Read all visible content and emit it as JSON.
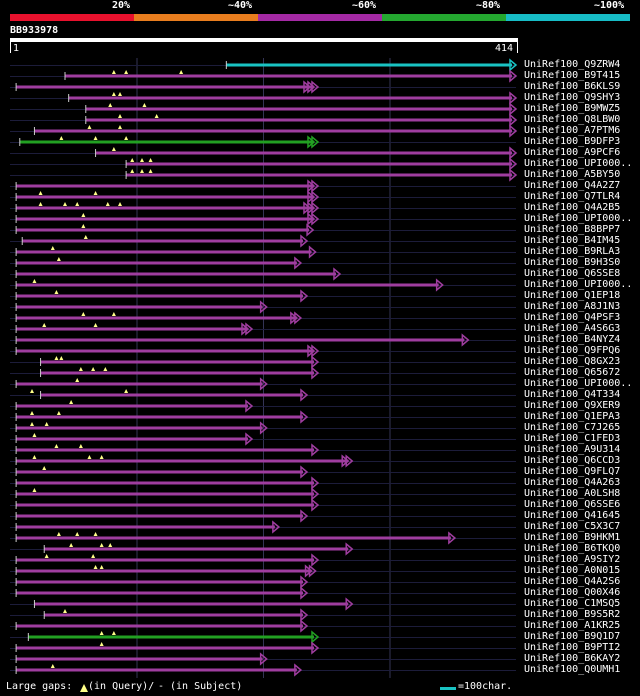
{
  "header": {
    "scale_labels": [
      "20%",
      "~40%",
      "~60%",
      "~80%",
      "~100%"
    ],
    "scale_colors": [
      "#e8112d",
      "#e87d1e",
      "#a52aa5",
      "#24a830",
      "#17bcc6"
    ],
    "query_id": "BB933978",
    "start_pos": "1",
    "end_pos": "414"
  },
  "colors": {
    "line": "#9f3d9f",
    "line_green": "#22a022",
    "line_cyan": "#19c3c3",
    "gap_marker": "#ffff88",
    "background": "#000000",
    "grid": "#333355"
  },
  "query_length": 414,
  "hits": [
    {
      "label": "UniRef100_Q9ZRW4",
      "start": 177,
      "end": 414,
      "color": "cyan",
      "arrows": 1,
      "gaps": []
    },
    {
      "label": "UniRef100_B9T415",
      "start": 45,
      "end": 414,
      "color": "purple",
      "arrows": 1,
      "gaps": [
        85,
        95,
        140
      ]
    },
    {
      "label": "UniRef100_B6KLS9",
      "start": 5,
      "end": 252,
      "color": "purple",
      "arrows": 3,
      "gaps": []
    },
    {
      "label": "UniRef100_Q9SHY3",
      "start": 48,
      "end": 414,
      "color": "purple",
      "arrows": 1,
      "gaps": [
        85,
        90
      ]
    },
    {
      "label": "UniRef100_B9MWZ5",
      "start": 62,
      "end": 414,
      "color": "purple",
      "arrows": 1,
      "gaps": [
        82,
        110
      ]
    },
    {
      "label": "UniRef100_Q8LBW0",
      "start": 62,
      "end": 414,
      "color": "purple",
      "arrows": 1,
      "gaps": [
        90,
        120
      ]
    },
    {
      "label": "UniRef100_A7PTM6",
      "start": 20,
      "end": 414,
      "color": "purple",
      "arrows": 1,
      "gaps": [
        65,
        90
      ]
    },
    {
      "label": "UniRef100_B9DFP3",
      "start": 8,
      "end": 252,
      "color": "green",
      "arrows": 2,
      "gaps": [
        42,
        70,
        95
      ]
    },
    {
      "label": "UniRef100_A9PCF6",
      "start": 70,
      "end": 414,
      "color": "purple",
      "arrows": 1,
      "gaps": [
        85
      ]
    },
    {
      "label": "UniRef100_UPI000..",
      "start": 95,
      "end": 414,
      "color": "purple",
      "arrows": 1,
      "gaps": [
        100,
        108,
        115
      ]
    },
    {
      "label": "UniRef100_A5BY50",
      "start": 95,
      "end": 414,
      "color": "purple",
      "arrows": 1,
      "gaps": [
        100,
        108,
        115
      ]
    },
    {
      "label": "UniRef100_Q4A2Z7",
      "start": 5,
      "end": 252,
      "color": "purple",
      "arrows": 2,
      "gaps": []
    },
    {
      "label": "UniRef100_Q7TLR4",
      "start": 5,
      "end": 252,
      "color": "purple",
      "arrows": 2,
      "gaps": [
        25,
        70
      ]
    },
    {
      "label": "UniRef100_Q4A2B5",
      "start": 5,
      "end": 252,
      "color": "purple",
      "arrows": 3,
      "gaps": [
        25,
        45,
        55,
        80,
        90
      ]
    },
    {
      "label": "UniRef100_UPI000..",
      "start": 5,
      "end": 252,
      "color": "purple",
      "arrows": 2,
      "gaps": [
        60
      ]
    },
    {
      "label": "UniRef100_B8BPP7",
      "start": 5,
      "end": 248,
      "color": "purple",
      "arrows": 1,
      "gaps": [
        60
      ]
    },
    {
      "label": "UniRef100_B4IM45",
      "start": 10,
      "end": 243,
      "color": "purple",
      "arrows": 1,
      "gaps": [
        62
      ]
    },
    {
      "label": "UniRef100_B9RLA3",
      "start": 5,
      "end": 250,
      "color": "purple",
      "arrows": 1,
      "gaps": [
        35
      ]
    },
    {
      "label": "UniRef100_B9H3S0",
      "start": 5,
      "end": 238,
      "color": "purple",
      "arrows": 1,
      "gaps": [
        40
      ]
    },
    {
      "label": "UniRef100_Q6SSE8",
      "start": 5,
      "end": 270,
      "color": "purple",
      "arrows": 1,
      "gaps": []
    },
    {
      "label": "UniRef100_UPI000..",
      "start": 5,
      "end": 354,
      "color": "purple",
      "arrows": 1,
      "gaps": [
        20
      ]
    },
    {
      "label": "UniRef100_Q1EP18",
      "start": 5,
      "end": 243,
      "color": "purple",
      "arrows": 1,
      "gaps": [
        38
      ]
    },
    {
      "label": "UniRef100_A8J1N3",
      "start": 5,
      "end": 210,
      "color": "purple",
      "arrows": 1,
      "gaps": []
    },
    {
      "label": "UniRef100_Q4PSF3",
      "start": 5,
      "end": 238,
      "color": "purple",
      "arrows": 2,
      "gaps": [
        60,
        85
      ]
    },
    {
      "label": "UniRef100_A4S6G3",
      "start": 5,
      "end": 198,
      "color": "purple",
      "arrows": 2,
      "gaps": [
        28,
        70
      ]
    },
    {
      "label": "UniRef100_B4NYZ4",
      "start": 5,
      "end": 375,
      "color": "purple",
      "arrows": 1,
      "gaps": []
    },
    {
      "label": "UniRef100_Q9FPQ6",
      "start": 5,
      "end": 252,
      "color": "purple",
      "arrows": 2,
      "gaps": []
    },
    {
      "label": "UniRef100_Q8GX23",
      "start": 25,
      "end": 252,
      "color": "purple",
      "arrows": 1,
      "gaps": [
        38,
        42
      ]
    },
    {
      "label": "UniRef100_Q65672",
      "start": 25,
      "end": 252,
      "color": "purple",
      "arrows": 1,
      "gaps": [
        58,
        68,
        78
      ]
    },
    {
      "label": "UniRef100_UPI000..",
      "start": 5,
      "end": 210,
      "color": "purple",
      "arrows": 1,
      "gaps": [
        55
      ]
    },
    {
      "label": "UniRef100_Q4T334",
      "start": 25,
      "end": 243,
      "color": "purple",
      "arrows": 1,
      "gaps": [
        18,
        95
      ]
    },
    {
      "label": "UniRef100_Q9XER9",
      "start": 5,
      "end": 198,
      "color": "purple",
      "arrows": 1,
      "gaps": [
        50
      ]
    },
    {
      "label": "UniRef100_Q1EPA3",
      "start": 5,
      "end": 243,
      "color": "purple",
      "arrows": 1,
      "gaps": [
        18,
        40
      ]
    },
    {
      "label": "UniRef100_C7J265",
      "start": 5,
      "end": 210,
      "color": "purple",
      "arrows": 1,
      "gaps": [
        18,
        30
      ]
    },
    {
      "label": "UniRef100_C1FED3",
      "start": 5,
      "end": 198,
      "color": "purple",
      "arrows": 1,
      "gaps": [
        20
      ]
    },
    {
      "label": "UniRef100_A9U314",
      "start": 5,
      "end": 252,
      "color": "purple",
      "arrows": 1,
      "gaps": [
        38,
        58
      ]
    },
    {
      "label": "UniRef100_Q6CCD3",
      "start": 5,
      "end": 280,
      "color": "purple",
      "arrows": 2,
      "gaps": [
        20,
        65,
        75
      ]
    },
    {
      "label": "UniRef100_Q9FLQ7",
      "start": 5,
      "end": 243,
      "color": "purple",
      "arrows": 1,
      "gaps": [
        28
      ]
    },
    {
      "label": "UniRef100_Q4A263",
      "start": 5,
      "end": 252,
      "color": "purple",
      "arrows": 1,
      "gaps": []
    },
    {
      "label": "UniRef100_A0LSH8",
      "start": 5,
      "end": 252,
      "color": "purple",
      "arrows": 1,
      "gaps": [
        20
      ]
    },
    {
      "label": "UniRef100_Q6SSE6",
      "start": 5,
      "end": 252,
      "color": "purple",
      "arrows": 1,
      "gaps": []
    },
    {
      "label": "UniRef100_Q41645",
      "start": 5,
      "end": 243,
      "color": "purple",
      "arrows": 1,
      "gaps": []
    },
    {
      "label": "UniRef100_C5X3C7",
      "start": 5,
      "end": 220,
      "color": "purple",
      "arrows": 1,
      "gaps": []
    },
    {
      "label": "UniRef100_B9HKM1",
      "start": 5,
      "end": 364,
      "color": "purple",
      "arrows": 1,
      "gaps": [
        40,
        55,
        70
      ]
    },
    {
      "label": "UniRef100_B6TKQ0",
      "start": 28,
      "end": 280,
      "color": "purple",
      "arrows": 1,
      "gaps": [
        50,
        75,
        82
      ]
    },
    {
      "label": "UniRef100_A9SIY2",
      "start": 5,
      "end": 252,
      "color": "purple",
      "arrows": 1,
      "gaps": [
        30,
        68
      ]
    },
    {
      "label": "UniRef100_A0N015",
      "start": 5,
      "end": 250,
      "color": "purple",
      "arrows": 2,
      "gaps": [
        70,
        75
      ]
    },
    {
      "label": "UniRef100_Q4A2S6",
      "start": 5,
      "end": 243,
      "color": "purple",
      "arrows": 1,
      "gaps": []
    },
    {
      "label": "UniRef100_Q00X46",
      "start": 5,
      "end": 243,
      "color": "purple",
      "arrows": 1,
      "gaps": []
    },
    {
      "label": "UniRef100_C1MSQ5",
      "start": 20,
      "end": 280,
      "color": "purple",
      "arrows": 1,
      "gaps": []
    },
    {
      "label": "UniRef100_B9S5R2",
      "start": 28,
      "end": 243,
      "color": "purple",
      "arrows": 1,
      "gaps": [
        45
      ]
    },
    {
      "label": "UniRef100_A1KR25",
      "start": 5,
      "end": 243,
      "color": "purple",
      "arrows": 1,
      "gaps": []
    },
    {
      "label": "UniRef100_B9Q1D7",
      "start": 15,
      "end": 252,
      "color": "green",
      "arrows": 1,
      "gaps": [
        75,
        85
      ]
    },
    {
      "label": "UniRef100_B9PTI2",
      "start": 5,
      "end": 252,
      "color": "purple",
      "arrows": 1,
      "gaps": [
        75
      ]
    },
    {
      "label": "UniRef100_B6KAY2",
      "start": 5,
      "end": 210,
      "color": "purple",
      "arrows": 1,
      "gaps": []
    },
    {
      "label": "UniRef100_Q0UMH1",
      "start": 5,
      "end": 238,
      "color": "purple",
      "arrows": 1,
      "gaps": [
        35
      ]
    }
  ],
  "legend": {
    "gaps_label": "Large gaps: ",
    "in_query": "(in Query)/",
    "dash": "-",
    "in_subject": " (in Subject)",
    "scale_text": "=100char."
  }
}
